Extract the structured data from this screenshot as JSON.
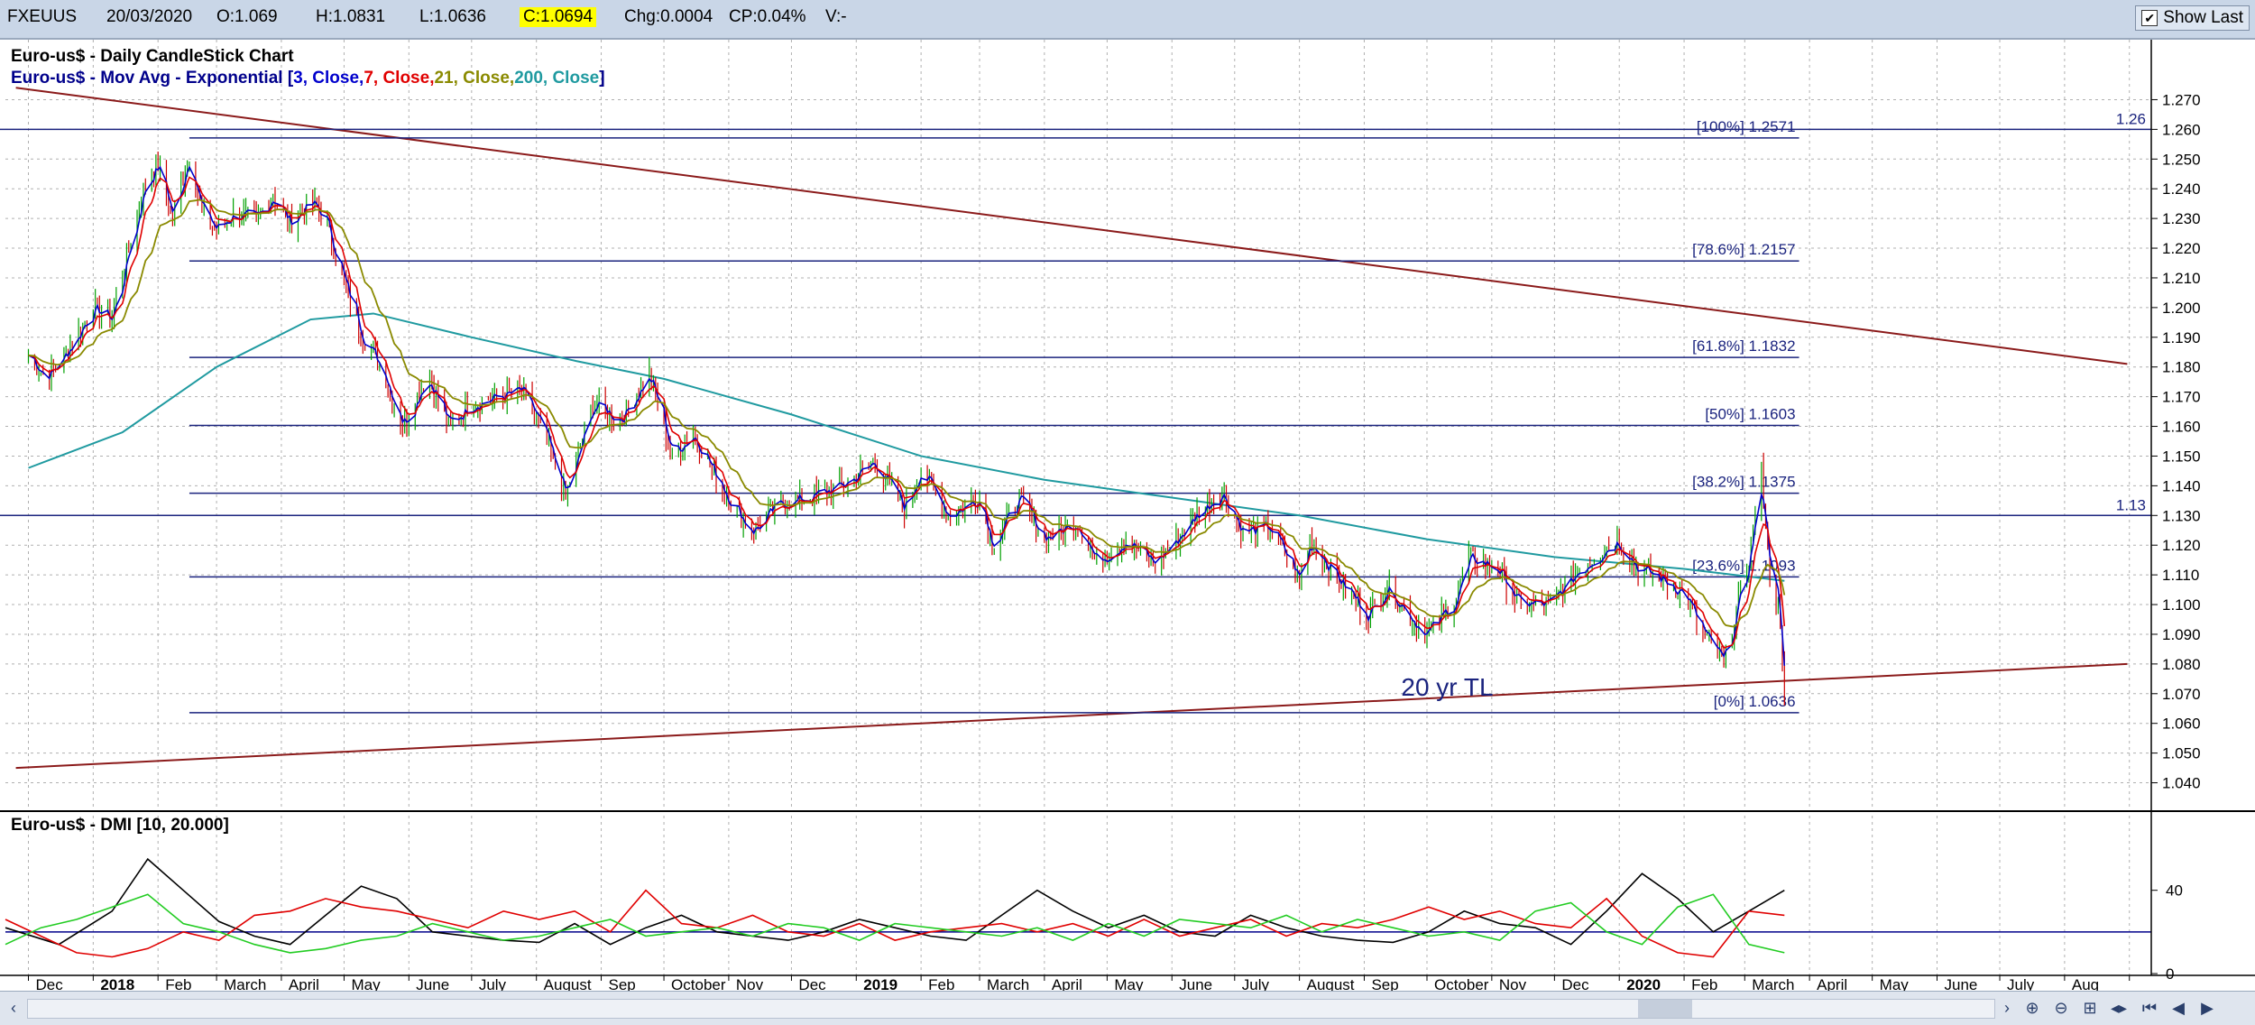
{
  "topbar": {
    "symbol": "FXEUUS",
    "date": "20/03/2020",
    "open": "O:1.069",
    "high": "H:1.0831",
    "low": "L:1.0636",
    "close": "C:1.0694",
    "change": "Chg:0.0004",
    "change_pct": "CP:0.04%",
    "volume": "V:-",
    "show_last_label": "Show Last",
    "show_last_checked": true
  },
  "chart_data": [
    {
      "type": "candlestick",
      "title": "Euro-us$ - Daily CandleStick Chart",
      "subtitle": {
        "prefix": "Euro-us$ - Mov Avg - Exponential [",
        "ma3": "3, Close,",
        "ma7": "7, Close,",
        "ma21": "21, Close,",
        "ma200": "200, Close",
        "suffix": "]"
      },
      "y_range": [
        1.035,
        1.275
      ],
      "y_ticks": [
        "1.040",
        "1.050",
        "1.060",
        "1.070",
        "1.080",
        "1.090",
        "1.100",
        "1.110",
        "1.120",
        "1.130",
        "1.140",
        "1.150",
        "1.160",
        "1.170",
        "1.180",
        "1.190",
        "1.200",
        "1.210",
        "1.220",
        "1.230",
        "1.240",
        "1.250",
        "1.260",
        "1.270"
      ],
      "x_labels": [
        "Dec",
        "2018",
        "Feb",
        "March",
        "April",
        "May",
        "June",
        "July",
        "August",
        "Sep",
        "October",
        "Nov",
        "Dec",
        "2019",
        "Feb",
        "March",
        "April",
        "May",
        "June",
        "July",
        "August",
        "Sep",
        "October",
        "Nov",
        "Dec",
        "2020",
        "Feb",
        "March",
        "April",
        "May",
        "June",
        "July",
        "Aug"
      ],
      "close_path": [
        [
          "2017-12-01",
          1.184
        ],
        [
          "2017-12-10",
          1.176
        ],
        [
          "2017-12-20",
          1.186
        ],
        [
          "2018-01-01",
          1.2
        ],
        [
          "2018-01-10",
          1.196
        ],
        [
          "2018-01-20",
          1.226
        ],
        [
          "2018-01-27",
          1.245
        ],
        [
          "2018-02-01",
          1.248
        ],
        [
          "2018-02-08",
          1.23
        ],
        [
          "2018-02-16",
          1.252
        ],
        [
          "2018-02-22",
          1.232
        ],
        [
          "2018-03-01",
          1.226
        ],
        [
          "2018-03-10",
          1.232
        ],
        [
          "2018-03-20",
          1.229
        ],
        [
          "2018-03-28",
          1.238
        ],
        [
          "2018-04-05",
          1.228
        ],
        [
          "2018-04-15",
          1.236
        ],
        [
          "2018-04-22",
          1.23
        ],
        [
          "2018-05-01",
          1.208
        ],
        [
          "2018-05-10",
          1.19
        ],
        [
          "2018-05-20",
          1.178
        ],
        [
          "2018-05-29",
          1.16
        ],
        [
          "2018-06-10",
          1.178
        ],
        [
          "2018-06-20",
          1.16
        ],
        [
          "2018-07-01",
          1.168
        ],
        [
          "2018-07-15",
          1.17
        ],
        [
          "2018-07-25",
          1.172
        ],
        [
          "2018-08-05",
          1.157
        ],
        [
          "2018-08-15",
          1.136
        ],
        [
          "2018-08-28",
          1.168
        ],
        [
          "2018-09-10",
          1.162
        ],
        [
          "2018-09-24",
          1.178
        ],
        [
          "2018-10-05",
          1.15
        ],
        [
          "2018-10-15",
          1.158
        ],
        [
          "2018-10-28",
          1.14
        ],
        [
          "2018-11-12",
          1.124
        ],
        [
          "2018-11-25",
          1.134
        ],
        [
          "2018-12-10",
          1.136
        ],
        [
          "2018-12-25",
          1.14
        ],
        [
          "2019-01-10",
          1.148
        ],
        [
          "2019-01-24",
          1.132
        ],
        [
          "2019-02-01",
          1.146
        ],
        [
          "2019-02-14",
          1.13
        ],
        [
          "2019-03-01",
          1.136
        ],
        [
          "2019-03-07",
          1.12
        ],
        [
          "2019-03-20",
          1.136
        ],
        [
          "2019-04-01",
          1.122
        ],
        [
          "2019-04-17",
          1.128
        ],
        [
          "2019-04-26",
          1.114
        ],
        [
          "2019-05-10",
          1.122
        ],
        [
          "2019-05-23",
          1.114
        ],
        [
          "2019-06-01",
          1.12
        ],
        [
          "2019-06-12",
          1.13
        ],
        [
          "2019-06-25",
          1.138
        ],
        [
          "2019-07-05",
          1.124
        ],
        [
          "2019-07-18",
          1.126
        ],
        [
          "2019-08-01",
          1.108
        ],
        [
          "2019-08-06",
          1.122
        ],
        [
          "2019-08-20",
          1.108
        ],
        [
          "2019-09-03",
          1.096
        ],
        [
          "2019-09-12",
          1.106
        ],
        [
          "2019-09-25",
          1.094
        ],
        [
          "2019-10-01",
          1.09
        ],
        [
          "2019-10-15",
          1.102
        ],
        [
          "2019-10-21",
          1.116
        ],
        [
          "2019-11-04",
          1.112
        ],
        [
          "2019-11-14",
          1.1
        ],
        [
          "2019-11-29",
          1.1
        ],
        [
          "2019-12-13",
          1.112
        ],
        [
          "2019-12-31",
          1.122
        ],
        [
          "2020-01-10",
          1.112
        ],
        [
          "2020-01-22",
          1.108
        ],
        [
          "2020-02-01",
          1.104
        ],
        [
          "2020-02-10",
          1.09
        ],
        [
          "2020-02-20",
          1.08
        ],
        [
          "2020-03-03",
          1.116
        ],
        [
          "2020-03-09",
          1.145
        ],
        [
          "2020-03-13",
          1.11
        ],
        [
          "2020-03-17",
          1.1
        ],
        [
          "2020-03-20",
          1.069
        ]
      ],
      "moving_averages": [
        {
          "name": "3, Close",
          "color": "#0000cc"
        },
        {
          "name": "7, Close",
          "color": "#e00000"
        },
        {
          "name": "21, Close",
          "color": "#8a8a00"
        },
        {
          "name": "200, Close",
          "color": "#1f9aa0"
        }
      ],
      "ma200_path": [
        [
          "2017-12-01",
          1.146
        ],
        [
          "2018-01-15",
          1.158
        ],
        [
          "2018-03-01",
          1.18
        ],
        [
          "2018-04-15",
          1.196
        ],
        [
          "2018-05-15",
          1.198
        ],
        [
          "2018-07-01",
          1.19
        ],
        [
          "2018-08-20",
          1.182
        ],
        [
          "2018-10-01",
          1.176
        ],
        [
          "2018-12-01",
          1.164
        ],
        [
          "2019-02-01",
          1.15
        ],
        [
          "2019-04-01",
          1.142
        ],
        [
          "2019-06-01",
          1.136
        ],
        [
          "2019-08-01",
          1.13
        ],
        [
          "2019-10-01",
          1.122
        ],
        [
          "2019-12-01",
          1.116
        ],
        [
          "2020-02-01",
          1.112
        ],
        [
          "2020-03-20",
          1.108
        ]
      ],
      "fibonacci_levels": [
        {
          "label": "[100%] 1.2571",
          "value": 1.2571
        },
        {
          "label": "[78.6%] 1.2157",
          "value": 1.2157
        },
        {
          "label": "[61.8%] 1.1832",
          "value": 1.1832
        },
        {
          "label": "[50%] 1.1603",
          "value": 1.1603
        },
        {
          "label": "[38.2%] 1.1375",
          "value": 1.1375
        },
        {
          "label": "[23.6%] 1.1093",
          "value": 1.1093
        },
        {
          "label": "[0%] 1.0636",
          "value": 1.0636
        }
      ],
      "fib_start_date": "2018-02-16",
      "fib_end_date": "2020-03-27",
      "horizontal_lines": [
        {
          "label": "1.26",
          "value": 1.26
        },
        {
          "label": "1.13",
          "value": 1.13
        }
      ],
      "trendlines": [
        {
          "from": [
            "2017-11-25",
            1.274
          ],
          "to": [
            "2020-08-31",
            1.181
          ],
          "color": "#8b1a1a"
        },
        {
          "from": [
            "2017-11-25",
            1.045
          ],
          "to": [
            "2020-08-31",
            1.08
          ],
          "color": "#8b1a1a"
        }
      ],
      "annotation": "20 yr TL",
      "annotation_anchor": [
        "2019-12-01",
        1.07
      ],
      "grid": true
    },
    {
      "type": "line",
      "title": "Euro-us$ - DMI [10, 20.000]",
      "y_range": [
        0,
        65
      ],
      "y_ticks": [
        "0",
        "40"
      ],
      "reference_line": 20,
      "series": [
        {
          "color": "#000000",
          "values": [
            [
              0,
              22
            ],
            [
              3,
              14
            ],
            [
              6,
              30
            ],
            [
              8,
              55
            ],
            [
              10,
              40
            ],
            [
              12,
              25
            ],
            [
              14,
              18
            ],
            [
              16,
              14
            ],
            [
              18,
              28
            ],
            [
              20,
              42
            ],
            [
              22,
              36
            ],
            [
              24,
              20
            ],
            [
              26,
              18
            ],
            [
              28,
              16
            ],
            [
              30,
              15
            ],
            [
              32,
              24
            ],
            [
              34,
              14
            ],
            [
              36,
              22
            ],
            [
              38,
              28
            ],
            [
              40,
              20
            ],
            [
              42,
              18
            ],
            [
              44,
              16
            ],
            [
              46,
              20
            ],
            [
              48,
              26
            ],
            [
              50,
              22
            ],
            [
              52,
              18
            ],
            [
              54,
              16
            ],
            [
              56,
              28
            ],
            [
              58,
              40
            ],
            [
              60,
              30
            ],
            [
              62,
              22
            ],
            [
              64,
              28
            ],
            [
              66,
              20
            ],
            [
              68,
              18
            ],
            [
              70,
              28
            ],
            [
              72,
              22
            ],
            [
              74,
              18
            ],
            [
              76,
              16
            ],
            [
              78,
              15
            ],
            [
              80,
              20
            ],
            [
              82,
              30
            ],
            [
              84,
              24
            ],
            [
              86,
              22
            ],
            [
              88,
              14
            ],
            [
              90,
              30
            ],
            [
              92,
              48
            ],
            [
              94,
              36
            ],
            [
              96,
              20
            ],
            [
              98,
              30
            ],
            [
              100,
              40
            ]
          ]
        },
        {
          "color": "#e00000",
          "values": [
            [
              0,
              26
            ],
            [
              2,
              18
            ],
            [
              4,
              10
            ],
            [
              6,
              8
            ],
            [
              8,
              12
            ],
            [
              10,
              20
            ],
            [
              12,
              16
            ],
            [
              14,
              28
            ],
            [
              16,
              30
            ],
            [
              18,
              36
            ],
            [
              20,
              32
            ],
            [
              22,
              30
            ],
            [
              24,
              26
            ],
            [
              26,
              22
            ],
            [
              28,
              30
            ],
            [
              30,
              26
            ],
            [
              32,
              30
            ],
            [
              34,
              20
            ],
            [
              36,
              40
            ],
            [
              38,
              24
            ],
            [
              40,
              22
            ],
            [
              42,
              28
            ],
            [
              44,
              20
            ],
            [
              46,
              18
            ],
            [
              48,
              24
            ],
            [
              50,
              16
            ],
            [
              52,
              20
            ],
            [
              54,
              22
            ],
            [
              56,
              24
            ],
            [
              58,
              20
            ],
            [
              60,
              24
            ],
            [
              62,
              18
            ],
            [
              64,
              26
            ],
            [
              66,
              18
            ],
            [
              68,
              22
            ],
            [
              70,
              26
            ],
            [
              72,
              18
            ],
            [
              74,
              24
            ],
            [
              76,
              22
            ],
            [
              78,
              26
            ],
            [
              80,
              32
            ],
            [
              82,
              26
            ],
            [
              84,
              30
            ],
            [
              86,
              24
            ],
            [
              88,
              22
            ],
            [
              90,
              36
            ],
            [
              92,
              18
            ],
            [
              94,
              10
            ],
            [
              96,
              8
            ],
            [
              98,
              30
            ],
            [
              100,
              28
            ]
          ]
        },
        {
          "color": "#22cc22",
          "values": [
            [
              0,
              14
            ],
            [
              2,
              22
            ],
            [
              4,
              26
            ],
            [
              6,
              32
            ],
            [
              8,
              38
            ],
            [
              10,
              24
            ],
            [
              12,
              20
            ],
            [
              14,
              14
            ],
            [
              16,
              10
            ],
            [
              18,
              12
            ],
            [
              20,
              16
            ],
            [
              22,
              18
            ],
            [
              24,
              24
            ],
            [
              26,
              20
            ],
            [
              28,
              16
            ],
            [
              30,
              18
            ],
            [
              32,
              22
            ],
            [
              34,
              26
            ],
            [
              36,
              18
            ],
            [
              38,
              20
            ],
            [
              40,
              22
            ],
            [
              42,
              18
            ],
            [
              44,
              24
            ],
            [
              46,
              22
            ],
            [
              48,
              16
            ],
            [
              50,
              24
            ],
            [
              52,
              22
            ],
            [
              54,
              20
            ],
            [
              56,
              18
            ],
            [
              58,
              22
            ],
            [
              60,
              16
            ],
            [
              62,
              24
            ],
            [
              64,
              18
            ],
            [
              66,
              26
            ],
            [
              68,
              24
            ],
            [
              70,
              22
            ],
            [
              72,
              28
            ],
            [
              74,
              20
            ],
            [
              76,
              26
            ],
            [
              78,
              22
            ],
            [
              80,
              18
            ],
            [
              82,
              20
            ],
            [
              84,
              16
            ],
            [
              86,
              30
            ],
            [
              88,
              34
            ],
            [
              90,
              20
            ],
            [
              92,
              14
            ],
            [
              94,
              32
            ],
            [
              96,
              38
            ],
            [
              98,
              14
            ],
            [
              100,
              10
            ]
          ]
        }
      ]
    }
  ]
}
